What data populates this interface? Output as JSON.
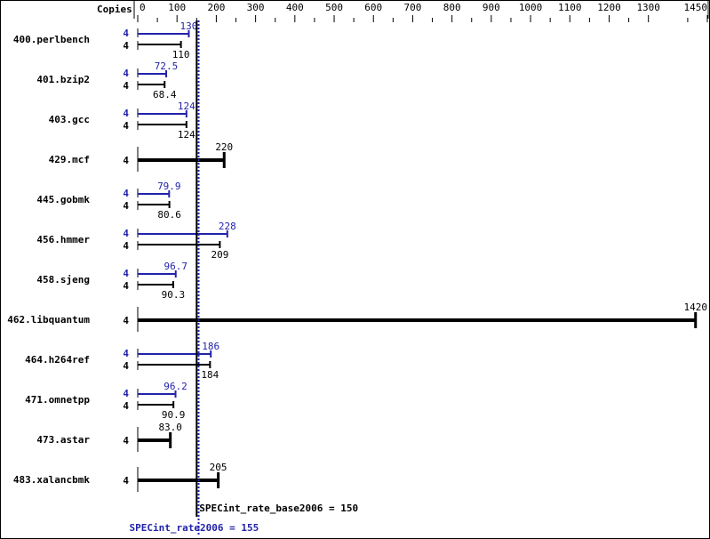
{
  "chart_data": {
    "type": "bar",
    "orientation": "horizontal",
    "copies_header": "Copies",
    "xlim": [
      0,
      1450
    ],
    "xticks": [
      0,
      100,
      200,
      300,
      400,
      500,
      600,
      700,
      800,
      900,
      1000,
      1100,
      1200,
      1300,
      1450
    ],
    "colors": {
      "peak": "#2222aa",
      "base": "#000000"
    },
    "benchmarks": [
      {
        "name": "400.perlbench",
        "peak_copies": "4",
        "peak": 130,
        "peak_label": "130",
        "base_copies": "4",
        "base": 110,
        "base_label": "110"
      },
      {
        "name": "401.bzip2",
        "peak_copies": "4",
        "peak": 72.5,
        "peak_label": "72.5",
        "base_copies": "4",
        "base": 68.4,
        "base_label": "68.4"
      },
      {
        "name": "403.gcc",
        "peak_copies": "4",
        "peak": 124,
        "peak_label": "124",
        "base_copies": "4",
        "base": 124,
        "base_label": "124"
      },
      {
        "name": "429.mcf",
        "base_copies": "4",
        "base": 220,
        "base_label": "220"
      },
      {
        "name": "445.gobmk",
        "peak_copies": "4",
        "peak": 79.9,
        "peak_label": "79.9",
        "base_copies": "4",
        "base": 80.6,
        "base_label": "80.6"
      },
      {
        "name": "456.hmmer",
        "peak_copies": "4",
        "peak": 228,
        "peak_label": "228",
        "base_copies": "4",
        "base": 209,
        "base_label": "209"
      },
      {
        "name": "458.sjeng",
        "peak_copies": "4",
        "peak": 96.7,
        "peak_label": "96.7",
        "base_copies": "4",
        "base": 90.3,
        "base_label": "90.3"
      },
      {
        "name": "462.libquantum",
        "base_copies": "4",
        "base": 1420,
        "base_label": "1420"
      },
      {
        "name": "464.h264ref",
        "peak_copies": "4",
        "peak": 186,
        "peak_label": "186",
        "base_copies": "4",
        "base": 184,
        "base_label": "184"
      },
      {
        "name": "471.omnetpp",
        "peak_copies": "4",
        "peak": 96.2,
        "peak_label": "96.2",
        "base_copies": "4",
        "base": 90.9,
        "base_label": "90.9"
      },
      {
        "name": "473.astar",
        "base_copies": "4",
        "base": 83.0,
        "base_label": "83.0"
      },
      {
        "name": "483.xalancbmk",
        "base_copies": "4",
        "base": 205,
        "base_label": "205"
      }
    ],
    "base_metric": {
      "label": "SPECint_rate_base2006 = 150",
      "value": 150
    },
    "peak_metric": {
      "label": "SPECint_rate2006 = 155",
      "value": 155
    }
  }
}
